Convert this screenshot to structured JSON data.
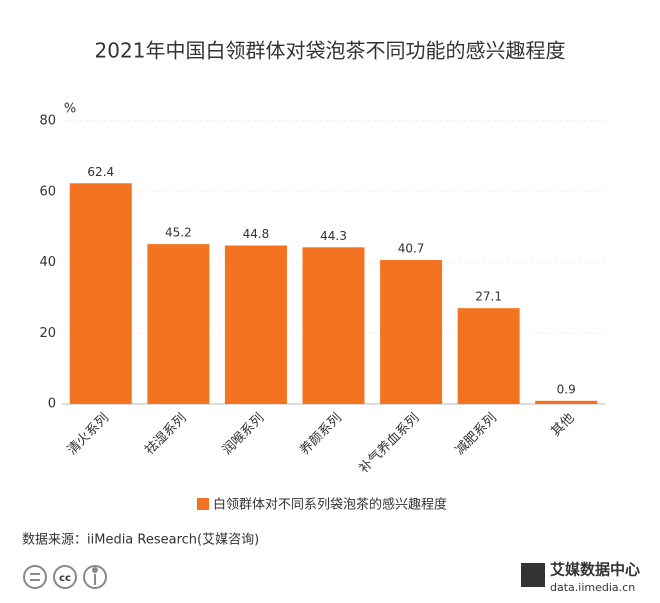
{
  "chart_data": {
    "type": "bar",
    "title": "2021年中国白领群体对袋泡茶不同功能的感兴趣程度",
    "y_label": "%",
    "categories": [
      "清火系列",
      "祛湿系列",
      "润喉系列",
      "养颜系列",
      "补气养血系列",
      "减肥系列",
      "其他"
    ],
    "series": [
      {
        "name": "白领群体对不同系列袋泡茶的感兴趣程度",
        "color": "#f47321",
        "values": [
          62.4,
          45.2,
          44.8,
          44.3,
          40.7,
          27.1,
          0.9
        ]
      }
    ],
    "ylim": [
      0,
      80
    ],
    "yticks": [
      0,
      20,
      40,
      60,
      80
    ],
    "grid": true,
    "legend": "bottom",
    "source": "数据来源：iiMedia Research(艾媒咨询)",
    "license": "cc",
    "brand": "艾媒数据中心",
    "brand_url": "data.iimedia.cn"
  }
}
